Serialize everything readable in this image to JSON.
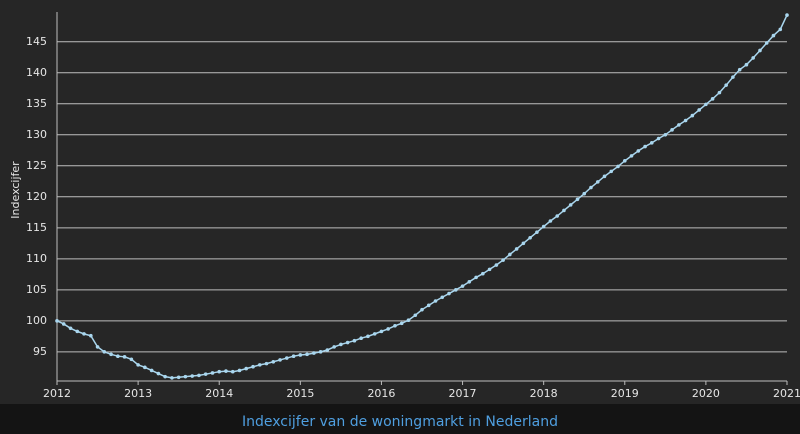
{
  "chart_data": {
    "type": "line",
    "caption": "Indexcijfer van de woningmarkt in Nederland",
    "y_label": "Indexcijfer",
    "xlim": [
      2012,
      2021
    ],
    "xticks": [
      2012,
      2013,
      2014,
      2015,
      2016,
      2017,
      2018,
      2019,
      2020,
      2021
    ],
    "ylim": [
      90.3,
      149.8
    ],
    "yticks": [
      95,
      100,
      105,
      110,
      115,
      120,
      125,
      130,
      135,
      140,
      145
    ],
    "grid": true,
    "series": [
      {
        "color": "#a9d6ee",
        "x": [
          2012,
          2012.083,
          2012.167,
          2012.25,
          2012.333,
          2012.417,
          2012.5,
          2012.583,
          2012.667,
          2012.75,
          2012.833,
          2012.917,
          2013,
          2013.083,
          2013.167,
          2013.25,
          2013.333,
          2013.417,
          2013.5,
          2013.583,
          2013.667,
          2013.75,
          2013.833,
          2013.917,
          2014,
          2014.083,
          2014.167,
          2014.25,
          2014.333,
          2014.417,
          2014.5,
          2014.583,
          2014.667,
          2014.75,
          2014.833,
          2014.917,
          2015,
          2015.083,
          2015.167,
          2015.25,
          2015.333,
          2015.417,
          2015.5,
          2015.583,
          2015.667,
          2015.75,
          2015.833,
          2015.917,
          2016,
          2016.083,
          2016.167,
          2016.25,
          2016.333,
          2016.417,
          2016.5,
          2016.583,
          2016.667,
          2016.75,
          2016.833,
          2016.917,
          2017,
          2017.083,
          2017.167,
          2017.25,
          2017.333,
          2017.417,
          2017.5,
          2017.583,
          2017.667,
          2017.75,
          2017.833,
          2017.917,
          2018,
          2018.083,
          2018.167,
          2018.25,
          2018.333,
          2018.417,
          2018.5,
          2018.583,
          2018.667,
          2018.75,
          2018.833,
          2018.917,
          2019,
          2019.083,
          2019.167,
          2019.25,
          2019.333,
          2019.417,
          2019.5,
          2019.583,
          2019.667,
          2019.75,
          2019.833,
          2019.917,
          2020,
          2020.083,
          2020.167,
          2020.25,
          2020.333,
          2020.417,
          2020.5,
          2020.583,
          2020.667,
          2020.75,
          2020.833,
          2020.917,
          2021
        ],
        "values": [
          100,
          99.5,
          98.8,
          98.3,
          97.9,
          97.6,
          95.8,
          95.0,
          94.6,
          94.3,
          94.2,
          93.8,
          92.9,
          92.5,
          92.0,
          91.5,
          91.0,
          90.8,
          90.9,
          91.0,
          91.1,
          91.2,
          91.4,
          91.6,
          91.8,
          91.9,
          91.8,
          92.0,
          92.3,
          92.6,
          92.9,
          93.1,
          93.4,
          93.7,
          94.0,
          94.3,
          94.5,
          94.6,
          94.8,
          95.0,
          95.3,
          95.8,
          96.2,
          96.5,
          96.8,
          97.2,
          97.5,
          97.9,
          98.3,
          98.7,
          99.2,
          99.6,
          100.1,
          100.9,
          101.8,
          102.5,
          103.2,
          103.8,
          104.4,
          105.0,
          105.6,
          106.3,
          107.0,
          107.6,
          108.3,
          109.0,
          109.8,
          110.7,
          111.6,
          112.5,
          113.4,
          114.3,
          115.2,
          116.1,
          116.9,
          117.8,
          118.7,
          119.6,
          120.5,
          121.5,
          122.4,
          123.3,
          124.1,
          124.9,
          125.8,
          126.6,
          127.4,
          128.1,
          128.7,
          129.4,
          130.0,
          130.8,
          131.6,
          132.3,
          133.1,
          134.0,
          134.9,
          135.8,
          136.8,
          138.0,
          139.3,
          140.5,
          141.3,
          142.4,
          143.6,
          144.8,
          146.0,
          147.0,
          149.3
        ]
      }
    ]
  }
}
